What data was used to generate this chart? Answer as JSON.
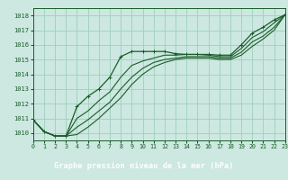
{
  "title": "Graphe pression niveau de la mer (hPa)",
  "bg_plot": "#cce8e0",
  "bg_bottom": "#2d6e3e",
  "grid_color": "#9ecfbf",
  "line_color": "#1a5c2a",
  "text_color": "#1a5c2a",
  "label_text_color": "#ffffff",
  "xlim": [
    0,
    23
  ],
  "ylim": [
    1009.5,
    1018.5
  ],
  "yticks": [
    1010,
    1011,
    1012,
    1013,
    1014,
    1015,
    1016,
    1017,
    1018
  ],
  "xticks": [
    0,
    1,
    2,
    3,
    4,
    5,
    6,
    7,
    8,
    9,
    10,
    11,
    12,
    13,
    14,
    15,
    16,
    17,
    18,
    19,
    20,
    21,
    22,
    23
  ],
  "series_main": [
    1010.9,
    1010.1,
    1009.8,
    1009.8,
    1011.8,
    1012.5,
    1013.0,
    1013.8,
    1015.2,
    1015.55,
    1015.55,
    1015.55,
    1015.55,
    1015.4,
    1015.35,
    1015.35,
    1015.35,
    1015.3,
    1015.3,
    1016.0,
    1016.8,
    1017.2,
    1017.7,
    1018.05
  ],
  "series_others": [
    [
      1010.9,
      1010.1,
      1009.8,
      1009.8,
      1011.0,
      1011.5,
      1012.2,
      1012.8,
      1013.8,
      1014.6,
      1014.9,
      1015.1,
      1015.3,
      1015.3,
      1015.35,
      1015.35,
      1015.3,
      1015.2,
      1015.2,
      1015.75,
      1016.5,
      1016.9,
      1017.5,
      1018.05
    ],
    [
      1010.9,
      1010.1,
      1009.8,
      1009.8,
      1010.4,
      1010.9,
      1011.5,
      1012.1,
      1013.0,
      1013.8,
      1014.4,
      1014.8,
      1015.0,
      1015.1,
      1015.2,
      1015.2,
      1015.2,
      1015.1,
      1015.1,
      1015.5,
      1016.2,
      1016.6,
      1017.2,
      1018.05
    ],
    [
      1010.9,
      1010.1,
      1009.8,
      1009.8,
      1009.9,
      1010.4,
      1011.0,
      1011.7,
      1012.4,
      1013.3,
      1014.0,
      1014.5,
      1014.8,
      1015.0,
      1015.1,
      1015.1,
      1015.1,
      1015.0,
      1015.0,
      1015.3,
      1015.9,
      1016.4,
      1017.0,
      1018.05
    ]
  ]
}
